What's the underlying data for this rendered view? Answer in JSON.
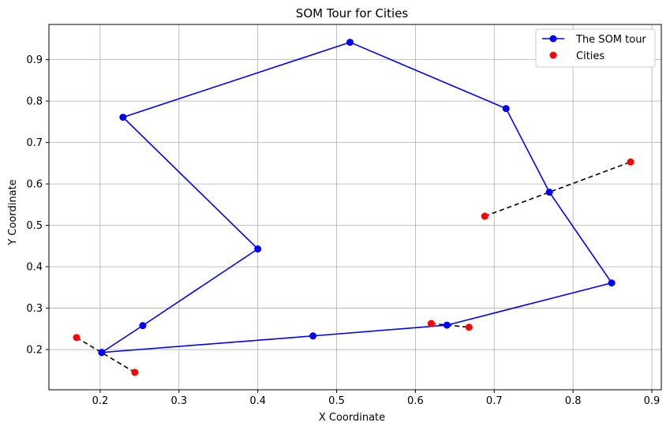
{
  "chart_data": {
    "type": "line",
    "title": "SOM Tour for Cities",
    "xlabel": "X Coordinate",
    "ylabel": "Y Coordinate",
    "xlim": [
      0.135,
      0.912
    ],
    "ylim": [
      0.103,
      0.985
    ],
    "xticks": [
      0.2,
      0.3,
      0.4,
      0.5,
      0.6,
      0.7,
      0.8,
      0.9
    ],
    "yticks": [
      0.2,
      0.3,
      0.4,
      0.5,
      0.6,
      0.7,
      0.8,
      0.9
    ],
    "grid": true,
    "legend_position": "top-right",
    "colors": {
      "tour": "#0000ff",
      "cities": "#ff0000",
      "links": "#000000",
      "grid": "#b0b0b0"
    },
    "series": [
      {
        "name": "The SOM tour",
        "style": "line-with-markers",
        "x": [
          0.202,
          0.254,
          0.4,
          0.229,
          0.517,
          0.715,
          0.77,
          0.849,
          0.64,
          0.47,
          0.202
        ],
        "y": [
          0.193,
          0.258,
          0.443,
          0.761,
          0.942,
          0.782,
          0.58,
          0.361,
          0.259,
          0.233,
          0.193
        ]
      },
      {
        "name": "Cities",
        "style": "scatter",
        "x": [
          0.17,
          0.244,
          0.62,
          0.668,
          0.688,
          0.873
        ],
        "y": [
          0.229,
          0.145,
          0.263,
          0.254,
          0.522,
          0.653
        ]
      }
    ],
    "links": [
      {
        "x": [
          0.17,
          0.244
        ],
        "y": [
          0.229,
          0.145
        ]
      },
      {
        "x": [
          0.62,
          0.668
        ],
        "y": [
          0.263,
          0.254
        ]
      },
      {
        "x": [
          0.688,
          0.873
        ],
        "y": [
          0.522,
          0.653
        ]
      }
    ]
  }
}
